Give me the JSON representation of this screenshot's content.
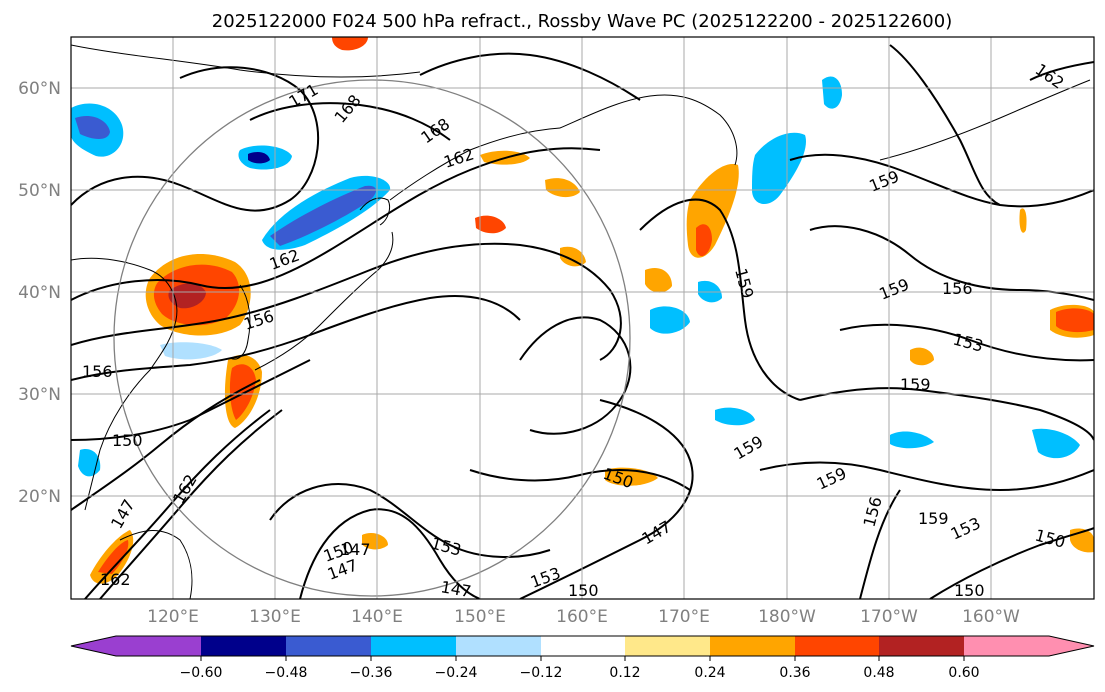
{
  "title": "2025122000 F024 500 hPa refract., Rossby Wave PC (2025122200 - 2025122600)",
  "longitude_labels": [
    "120°E",
    "130°E",
    "140°E",
    "150°E",
    "160°E",
    "170°E",
    "180°W",
    "170°W",
    "160°W"
  ],
  "latitude_labels": [
    "60°N",
    "50°N",
    "40°N",
    "30°N",
    "20°N"
  ],
  "colorbar": {
    "tick_labels": [
      "−0.60",
      "−0.48",
      "−0.36",
      "−0.24",
      "−0.12",
      "0.12",
      "0.24",
      "0.36",
      "0.48",
      "0.60"
    ],
    "colors": [
      "#9a3fd0",
      "#00008b",
      "#3a5bd1",
      "#00bfff",
      "#b0e0ff",
      "#ffffff",
      "#ffe88a",
      "#ffa500",
      "#ff4500",
      "#b22222",
      "#ff8fb0"
    ]
  },
  "contour_labels": [
    "171",
    "168",
    "168",
    "162",
    "162",
    "159",
    "159",
    "159",
    "156",
    "156",
    "156",
    "153",
    "159",
    "159",
    "159",
    "156",
    "159",
    "153",
    "150",
    "150",
    "147",
    "153",
    "153",
    "147",
    "150",
    "150",
    "147",
    "147",
    "162",
    "147",
    "150",
    "162",
    "162",
    "150"
  ]
}
